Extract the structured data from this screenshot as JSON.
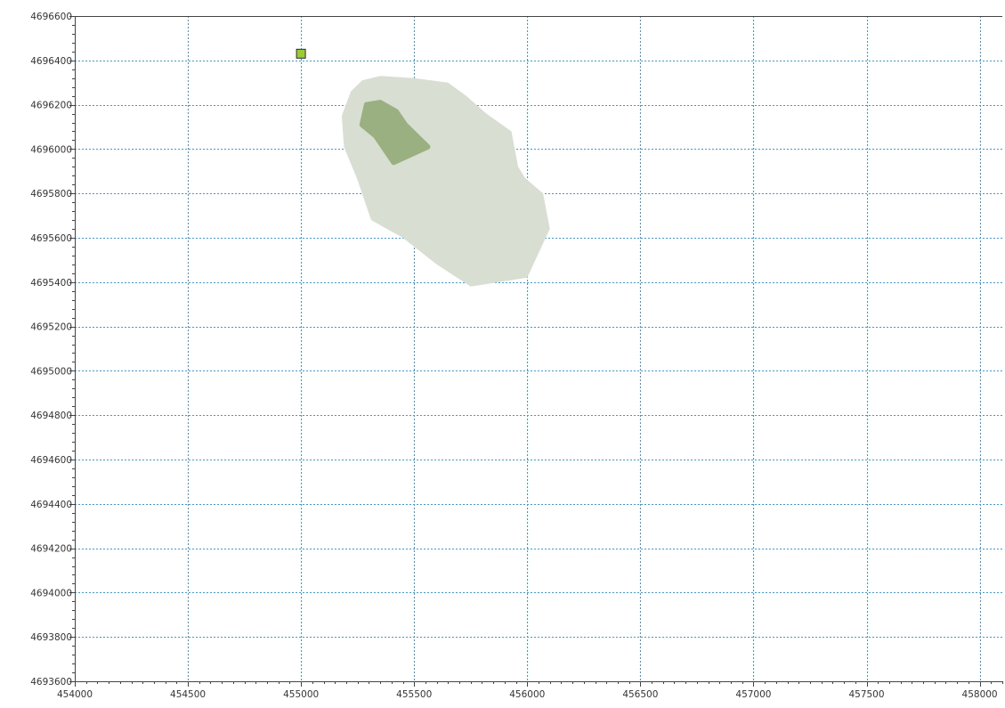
{
  "map": {
    "crs_units": "m",
    "x_range": [
      454000,
      458100
    ],
    "y_range": [
      4693600,
      4696600
    ],
    "x_ticks": [
      454000,
      454500,
      455000,
      455500,
      456000,
      456500,
      457000,
      457500,
      458000
    ],
    "y_ticks": [
      4693600,
      4693800,
      4694000,
      4694200,
      4694400,
      4694600,
      4694800,
      4695000,
      4695200,
      4695400,
      4695600,
      4695800,
      4696000,
      4696200,
      4696400,
      4696600
    ],
    "x_minor_step": 50,
    "y_minor_step": 40,
    "grid": true,
    "colors": {
      "grid": "#3a9bd8",
      "axis": "#444444",
      "outer_zone_fill": "#d8dfd2",
      "inner_zone_fill": "#9bb081",
      "marker_fill": "#9acd32",
      "marker_stroke": "#2b2b2b"
    },
    "outer_zone": [
      [
        455180,
        4696150
      ],
      [
        455220,
        4696260
      ],
      [
        455270,
        4696310
      ],
      [
        455350,
        4696330
      ],
      [
        455500,
        4696320
      ],
      [
        455650,
        4696300
      ],
      [
        455730,
        4696240
      ],
      [
        455820,
        4696160
      ],
      [
        455930,
        4696080
      ],
      [
        455960,
        4695920
      ],
      [
        455990,
        4695870
      ],
      [
        456070,
        4695800
      ],
      [
        456100,
        4695640
      ],
      [
        456000,
        4695420
      ],
      [
        455750,
        4695380
      ],
      [
        455600,
        4695480
      ],
      [
        455450,
        4695600
      ],
      [
        455310,
        4695680
      ],
      [
        455250,
        4695860
      ],
      [
        455190,
        4696010
      ]
    ],
    "inner_zone": [
      [
        455270,
        4696110
      ],
      [
        455290,
        4696200
      ],
      [
        455350,
        4696210
      ],
      [
        455420,
        4696170
      ],
      [
        455460,
        4696110
      ],
      [
        455560,
        4696010
      ],
      [
        455410,
        4695940
      ],
      [
        455330,
        4696060
      ]
    ],
    "marker": {
      "x": 455000,
      "y": 4696430,
      "shape": "square"
    }
  }
}
